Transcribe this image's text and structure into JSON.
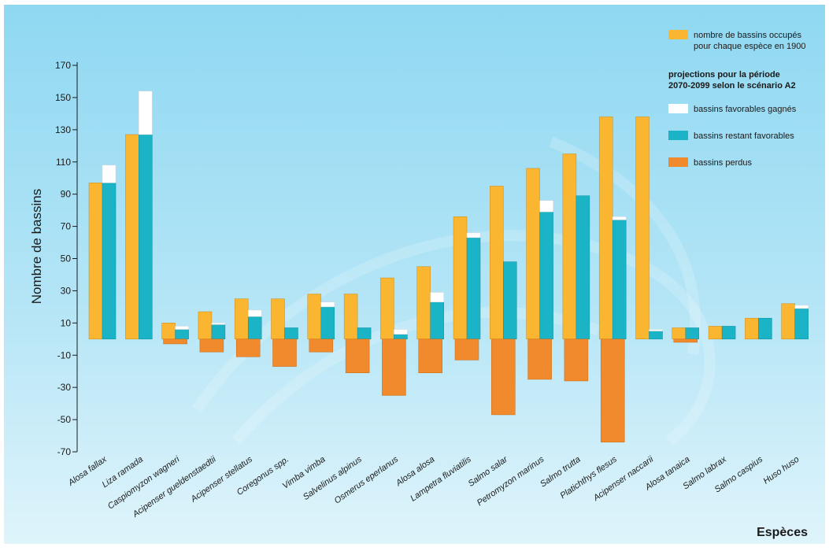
{
  "chart_data": {
    "type": "bar",
    "ylabel": "Nombre de bassins",
    "xlabel": "Espèces",
    "ylim": [
      -70,
      170
    ],
    "yticks": [
      170,
      150,
      130,
      110,
      90,
      70,
      50,
      30,
      10,
      -10,
      -30,
      -50,
      -70
    ],
    "grid": false,
    "legend_position": "top-right",
    "legend": {
      "occupied": "nombre de bassins occupés pour chaque espèce en 1900",
      "projection_title": "projections pour la période 2070-2099 selon le scénario A2",
      "gained": "bassins favorables gagnés",
      "remaining": "bassins restant favorables",
      "lost": "bassins perdus"
    },
    "colors": {
      "occupied": "#fbb631",
      "remaining": "#1ab4c6",
      "gained": "#ffffff",
      "lost": "#f08a2c"
    },
    "categories": [
      "Alosa fallax",
      "Liza ramada",
      "Caspiomyzon wagneri",
      "Acipenser gueldenstaedtii",
      "Acipenser stellatus",
      "Coregonus spp.",
      "Vimba vimba",
      "Salvelinus alpinus",
      "Osmerus eperlanus",
      "Alosa alosa",
      "Lampetra fluviatilis",
      "Salmo salar",
      "Petromyzon marinus",
      "Salmo trutta",
      "Platichthys flesus",
      "Acipenser naccarii",
      "Alosa tanaica",
      "Salmo labrax",
      "Salmo caspius",
      "Huso huso"
    ],
    "series": [
      {
        "name": "nombre de bassins occupés pour chaque espèce en 1900",
        "values": [
          97,
          127,
          10,
          17,
          25,
          25,
          28,
          28,
          38,
          45,
          76,
          95,
          106,
          115,
          138,
          138,
          7,
          8,
          13,
          22
        ]
      },
      {
        "name": "bassins restant favorables",
        "values": [
          97,
          127,
          6,
          9,
          14,
          7,
          20,
          7,
          3,
          23,
          63,
          48,
          79,
          89,
          74,
          5,
          7,
          8,
          13,
          19
        ]
      },
      {
        "name": "bassins favorables gagnés",
        "values": [
          11,
          27,
          2,
          1,
          4,
          0,
          3,
          0,
          3,
          6,
          3,
          0,
          7,
          0,
          2,
          1,
          0,
          0,
          0,
          2
        ]
      },
      {
        "name": "bassins perdus",
        "values": [
          0,
          0,
          -3,
          -8,
          -11,
          -17,
          -8,
          -21,
          -35,
          -21,
          -13,
          -47,
          -25,
          -26,
          -64,
          0,
          -2,
          0,
          0,
          0
        ]
      }
    ]
  }
}
